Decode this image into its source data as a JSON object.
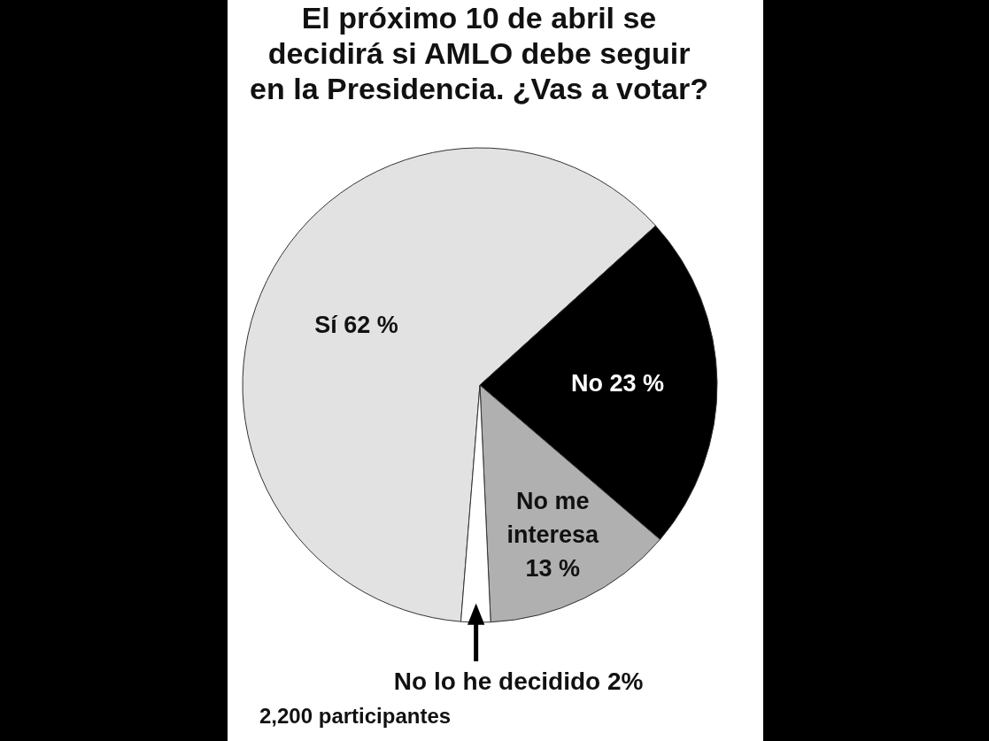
{
  "chart_data": {
    "type": "pie",
    "title": "El próximo 10 de abril se decidirá si AMLO debe seguir en la Presidencia. ¿Vas a votar?",
    "categories": [
      "Sí",
      "No",
      "No me interesa",
      "No lo he decidido"
    ],
    "values": [
      62,
      23,
      13,
      2
    ],
    "colors": [
      "#e2e2e2",
      "#000000",
      "#b0b0b0",
      "#ffffff"
    ],
    "value_labels": [
      "62 %",
      "23 %",
      "13 %",
      "2%"
    ],
    "annotations": [
      "2,200 participantes"
    ]
  }
}
